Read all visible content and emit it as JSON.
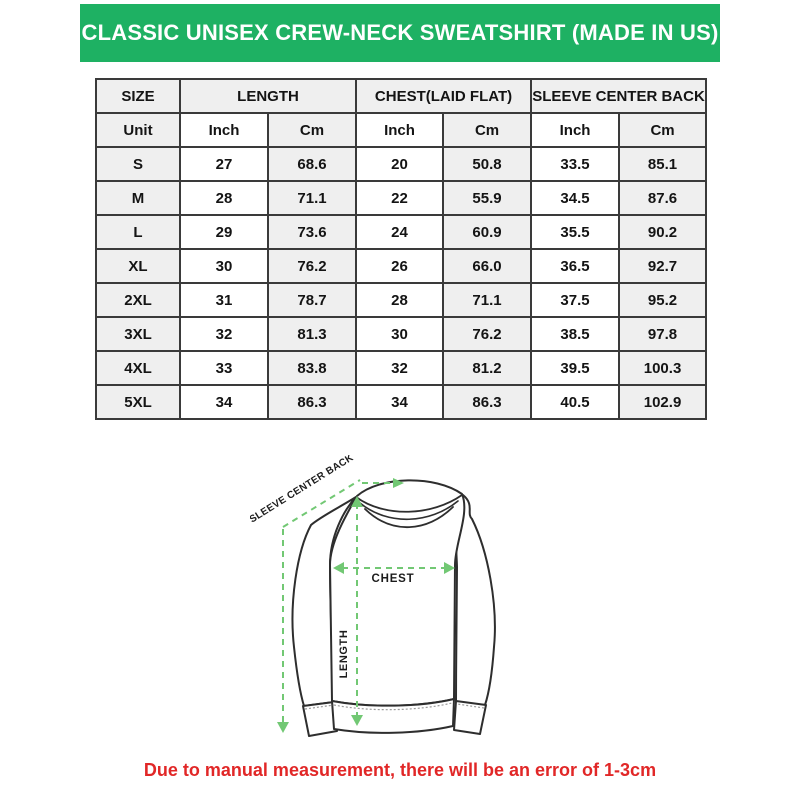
{
  "banner": {
    "title": "CLASSIC UNISEX CREW-NECK SWEATSHIRT (MADE IN US)",
    "bg_color": "#1eb163",
    "text_color": "#ffffff"
  },
  "table": {
    "group_headers": [
      {
        "label": "SIZE",
        "span": 1
      },
      {
        "label": "LENGTH",
        "span": 2
      },
      {
        "label": "CHEST(LAID FLAT)",
        "span": 2
      },
      {
        "label": "SLEEVE CENTER BACK",
        "span": 2
      }
    ],
    "unit_row": [
      "Unit",
      "Inch",
      "Cm",
      "Inch",
      "Cm",
      "Inch",
      "Cm"
    ],
    "rows": [
      {
        "size": "S",
        "values": [
          "27",
          "68.6",
          "20",
          "50.8",
          "33.5",
          "85.1"
        ]
      },
      {
        "size": "M",
        "values": [
          "28",
          "71.1",
          "22",
          "55.9",
          "34.5",
          "87.6"
        ]
      },
      {
        "size": "L",
        "values": [
          "29",
          "73.6",
          "24",
          "60.9",
          "35.5",
          "90.2"
        ]
      },
      {
        "size": "XL",
        "values": [
          "30",
          "76.2",
          "26",
          "66.0",
          "36.5",
          "92.7"
        ]
      },
      {
        "size": "2XL",
        "values": [
          "31",
          "78.7",
          "28",
          "71.1",
          "37.5",
          "95.2"
        ]
      },
      {
        "size": "3XL",
        "values": [
          "32",
          "81.3",
          "30",
          "76.2",
          "38.5",
          "97.8"
        ]
      },
      {
        "size": "4XL",
        "values": [
          "33",
          "83.8",
          "32",
          "81.2",
          "39.5",
          "100.3"
        ]
      },
      {
        "size": "5XL",
        "values": [
          "34",
          "86.3",
          "34",
          "86.3",
          "40.5",
          "102.9"
        ]
      }
    ],
    "shade_color": "#efefef",
    "border_color": "#3a3a3a"
  },
  "diagram": {
    "labels": {
      "sleeve": "SLEEVE CENTER BACK",
      "chest": "CHEST",
      "length": "LENGTH"
    },
    "line_color": "#72c874"
  },
  "footer": {
    "note": "Due to manual measurement, there will be an error of 1-3cm",
    "color": "#e12727"
  }
}
